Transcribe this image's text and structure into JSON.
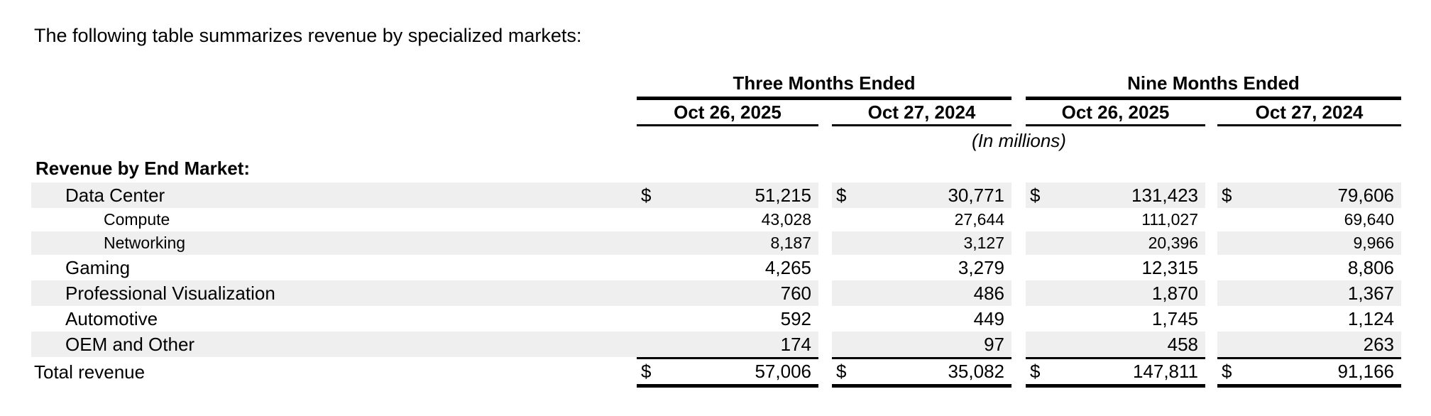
{
  "intro": "The following table summarizes revenue by specialized markets:",
  "colors": {
    "background": "#ffffff",
    "text": "#000000",
    "row_shade": "#efefef",
    "rule": "#000000"
  },
  "table": {
    "currency_symbol": "$",
    "col_groups": [
      {
        "label": "Three Months Ended"
      },
      {
        "label": "Nine Months Ended"
      }
    ],
    "col_headers": [
      "Oct 26, 2025",
      "Oct 27, 2024",
      "Oct 26, 2025",
      "Oct 27, 2024"
    ],
    "units_note": "(In millions)",
    "section_label": "Revenue by End Market:",
    "rows": [
      {
        "label": "Data Center",
        "indent": 1,
        "small": false,
        "shaded": true,
        "dollar": true,
        "values": [
          "51,215",
          "30,771",
          "131,423",
          "79,606"
        ]
      },
      {
        "label": "Compute",
        "indent": 2,
        "small": true,
        "shaded": false,
        "dollar": false,
        "values": [
          "43,028",
          "27,644",
          "111,027",
          "69,640"
        ]
      },
      {
        "label": "Networking",
        "indent": 2,
        "small": true,
        "shaded": true,
        "dollar": false,
        "values": [
          "8,187",
          "3,127",
          "20,396",
          "9,966"
        ]
      },
      {
        "label": "Gaming",
        "indent": 1,
        "small": false,
        "shaded": false,
        "dollar": false,
        "values": [
          "4,265",
          "3,279",
          "12,315",
          "8,806"
        ]
      },
      {
        "label": "Professional Visualization",
        "indent": 1,
        "small": false,
        "shaded": true,
        "dollar": false,
        "values": [
          "760",
          "486",
          "1,870",
          "1,367"
        ]
      },
      {
        "label": "Automotive",
        "indent": 1,
        "small": false,
        "shaded": false,
        "dollar": false,
        "values": [
          "592",
          "449",
          "1,745",
          "1,124"
        ]
      },
      {
        "label": "OEM and Other",
        "indent": 1,
        "small": false,
        "shaded": true,
        "dollar": false,
        "values": [
          "174",
          "97",
          "458",
          "263"
        ]
      }
    ],
    "total_row": {
      "label": "Total revenue",
      "dollar": true,
      "values": [
        "57,006",
        "35,082",
        "147,811",
        "91,166"
      ]
    }
  }
}
